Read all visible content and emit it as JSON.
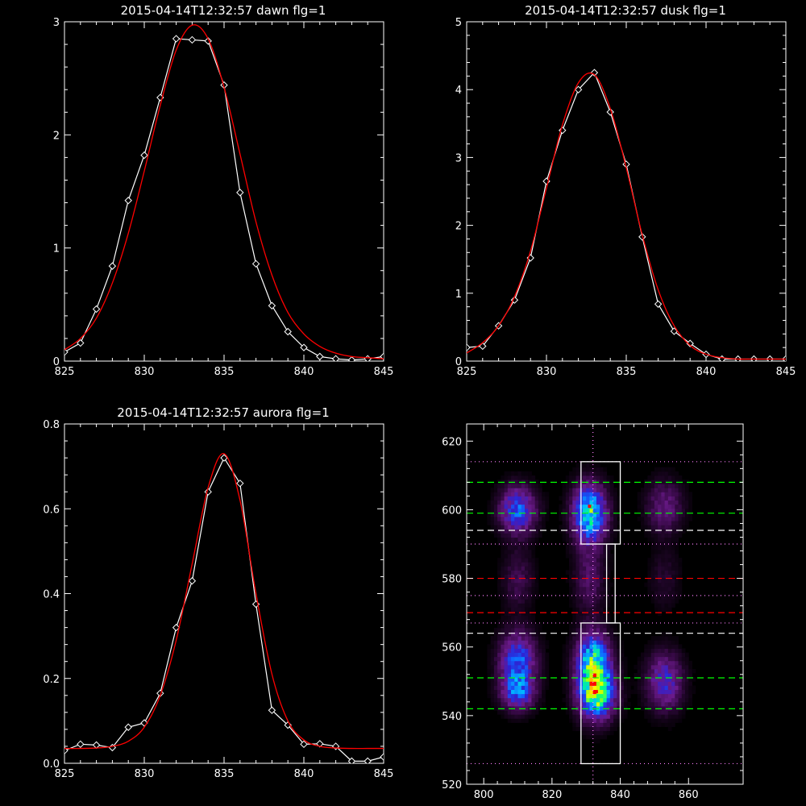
{
  "chart_data": [
    {
      "type": "line",
      "title": "2015-04-14T12:32:57 dawn flg=1",
      "xlim": [
        825,
        845
      ],
      "ylim": [
        0,
        3
      ],
      "xticks": [
        825,
        830,
        835,
        840,
        845
      ],
      "yticks": [
        0,
        1,
        2,
        3
      ],
      "grid": false,
      "series": [
        {
          "color": "#ffffff",
          "marker": "diamond",
          "x": [
            825,
            826,
            827,
            828,
            829,
            830,
            831,
            832,
            833,
            834,
            835,
            836,
            837,
            838,
            839,
            840,
            841,
            842,
            843,
            844,
            845
          ],
          "y": [
            0.08,
            0.16,
            0.46,
            0.84,
            1.42,
            1.82,
            2.33,
            2.85,
            2.84,
            2.83,
            2.44,
            1.49,
            0.86,
            0.49,
            0.26,
            0.12,
            0.04,
            0.02,
            0.01,
            0.02,
            0.04
          ]
        },
        {
          "color": "#ff0000",
          "curve": "gaussian",
          "x": [
            825,
            826,
            827,
            828,
            829,
            830,
            831,
            832,
            833,
            834,
            835,
            836,
            837,
            838,
            839,
            840,
            841,
            842,
            843,
            844,
            845
          ],
          "y": [
            0.1,
            0.2,
            0.38,
            0.69,
            1.13,
            1.68,
            2.26,
            2.75,
            2.97,
            2.85,
            2.42,
            1.83,
            1.23,
            0.76,
            0.43,
            0.24,
            0.13,
            0.07,
            0.04,
            0.03,
            0.02
          ]
        }
      ]
    },
    {
      "type": "line",
      "title": "2015-04-14T12:32:57 dusk flg=1",
      "xlim": [
        825,
        845
      ],
      "ylim": [
        0,
        5
      ],
      "xticks": [
        825,
        830,
        835,
        840,
        845
      ],
      "yticks": [
        0,
        1,
        2,
        3,
        4,
        5
      ],
      "grid": false,
      "series": [
        {
          "color": "#ffffff",
          "marker": "diamond",
          "x": [
            825,
            826,
            827,
            828,
            829,
            830,
            831,
            832,
            833,
            834,
            835,
            836,
            837,
            838,
            839,
            840,
            841,
            842,
            843,
            844,
            845
          ],
          "y": [
            0.2,
            0.22,
            0.52,
            0.9,
            1.52,
            2.65,
            3.4,
            4.0,
            4.25,
            3.67,
            2.9,
            1.83,
            0.84,
            0.44,
            0.26,
            0.1,
            0.03,
            0.03,
            0.03,
            0.03,
            0.03
          ]
        },
        {
          "color": "#ff0000",
          "curve": "gaussian",
          "x": [
            825,
            826,
            827,
            828,
            829,
            830,
            831,
            832,
            833,
            834,
            835,
            836,
            837,
            838,
            839,
            840,
            841,
            842,
            843,
            844,
            845
          ],
          "y": [
            0.12,
            0.27,
            0.52,
            0.95,
            1.62,
            2.55,
            3.48,
            4.1,
            4.22,
            3.72,
            2.85,
            1.86,
            1.05,
            0.52,
            0.23,
            0.1,
            0.05,
            0.03,
            0.03,
            0.03,
            0.03
          ]
        }
      ]
    },
    {
      "type": "line",
      "title": "2015-04-14T12:32:57 aurora flg=1",
      "xlim": [
        825,
        845
      ],
      "ylim": [
        0,
        0.8
      ],
      "xticks": [
        825,
        830,
        835,
        840,
        845
      ],
      "yticks": [
        0.0,
        0.2,
        0.4,
        0.6,
        0.8
      ],
      "ytick_labels": [
        "0.0",
        "0.2",
        "0.4",
        "0.6",
        "0.8"
      ],
      "grid": false,
      "series": [
        {
          "color": "#ffffff",
          "marker": "diamond",
          "x": [
            825,
            826,
            827,
            828,
            829,
            830,
            831,
            832,
            833,
            834,
            835,
            836,
            837,
            838,
            839,
            840,
            841,
            842,
            843,
            844,
            845
          ],
          "y": [
            0.03,
            0.045,
            0.043,
            0.037,
            0.085,
            0.095,
            0.165,
            0.32,
            0.43,
            0.64,
            0.72,
            0.66,
            0.375,
            0.125,
            0.09,
            0.045,
            0.046,
            0.04,
            0.005,
            0.005,
            0.015
          ]
        },
        {
          "color": "#ff0000",
          "curve": "gaussian",
          "x": [
            825,
            826,
            827,
            828,
            829,
            830,
            831,
            832,
            833,
            834,
            835,
            836,
            837,
            838,
            839,
            840,
            841,
            842,
            843,
            844,
            845
          ],
          "y": [
            0.035,
            0.035,
            0.036,
            0.04,
            0.052,
            0.085,
            0.16,
            0.29,
            0.47,
            0.65,
            0.73,
            0.62,
            0.4,
            0.21,
            0.1,
            0.055,
            0.04,
            0.036,
            0.035,
            0.035,
            0.035
          ]
        }
      ]
    },
    {
      "type": "heatmap",
      "xlim": [
        795,
        876
      ],
      "ylim": [
        520,
        625
      ],
      "xticks": [
        800,
        820,
        840,
        860
      ],
      "yticks": [
        520,
        540,
        560,
        580,
        600,
        620
      ],
      "colormap": [
        "#000000",
        "#3a0a4a",
        "#6a1a8a",
        "#3020d0",
        "#1060ff",
        "#00c0ff",
        "#00ff80",
        "#c0ff00",
        "#ffff00",
        "#ff0000"
      ],
      "blobs": [
        {
          "x": 810,
          "y": 600,
          "sx": 3.5,
          "sy": 4.5,
          "v": 0.42
        },
        {
          "x": 810,
          "y": 580,
          "sx": 3.0,
          "sy": 6.0,
          "v": 0.12
        },
        {
          "x": 810,
          "y": 556,
          "sx": 3.5,
          "sy": 5.5,
          "v": 0.42
        },
        {
          "x": 810,
          "y": 547,
          "sx": 3.2,
          "sy": 3.5,
          "v": 0.38
        },
        {
          "x": 831,
          "y": 599,
          "sx": 3.2,
          "sy": 5.5,
          "v": 0.66
        },
        {
          "x": 831,
          "y": 580,
          "sx": 3.0,
          "sy": 7.0,
          "v": 0.15
        },
        {
          "x": 832,
          "y": 557,
          "sx": 3.2,
          "sy": 5.0,
          "v": 0.56
        },
        {
          "x": 833,
          "y": 547,
          "sx": 3.4,
          "sy": 5.0,
          "v": 0.84
        },
        {
          "x": 853,
          "y": 601,
          "sx": 3.5,
          "sy": 5.0,
          "v": 0.2
        },
        {
          "x": 853,
          "y": 580,
          "sx": 3.0,
          "sy": 6.0,
          "v": 0.07
        },
        {
          "x": 853,
          "y": 550,
          "sx": 3.5,
          "sy": 5.5,
          "v": 0.32
        }
      ],
      "boxes": [
        {
          "x0": 828.5,
          "x1": 840,
          "y0": 590,
          "y1": 614,
          "color": "#ffffff"
        },
        {
          "x0": 836,
          "x1": 838.5,
          "y0": 567,
          "y1": 590,
          "color": "#ffffff"
        },
        {
          "x0": 828.5,
          "x1": 840,
          "y0": 526,
          "y1": 567,
          "color": "#ffffff"
        }
      ],
      "hlines": [
        {
          "y": 614,
          "color": "#ff80ff",
          "style": "dotted"
        },
        {
          "y": 608,
          "color": "#00ff00",
          "style": "dashed"
        },
        {
          "y": 599,
          "color": "#00ff00",
          "style": "dashed"
        },
        {
          "y": 594,
          "color": "#ffffff",
          "style": "dashed"
        },
        {
          "y": 590,
          "color": "#ff80ff",
          "style": "dotted"
        },
        {
          "y": 580,
          "color": "#ff0000",
          "style": "dashed"
        },
        {
          "y": 575,
          "color": "#ff80ff",
          "style": "dotted"
        },
        {
          "y": 570,
          "color": "#ff0000",
          "style": "dashed"
        },
        {
          "y": 567,
          "color": "#ff80ff",
          "style": "dotted"
        },
        {
          "y": 564,
          "color": "#ffffff",
          "style": "dashed"
        },
        {
          "y": 551,
          "color": "#00ff00",
          "style": "dashed"
        },
        {
          "y": 542,
          "color": "#00ff00",
          "style": "dashed"
        },
        {
          "y": 526,
          "color": "#ff80ff",
          "style": "dotted"
        }
      ],
      "vlines": [
        {
          "x": 832,
          "color": "#ff80ff",
          "style": "dotted"
        }
      ],
      "points": [
        {
          "x": 831,
          "y": 601,
          "color": "#ff0000"
        },
        {
          "x": 833,
          "y": 547,
          "color": "#ff0000"
        }
      ]
    }
  ]
}
